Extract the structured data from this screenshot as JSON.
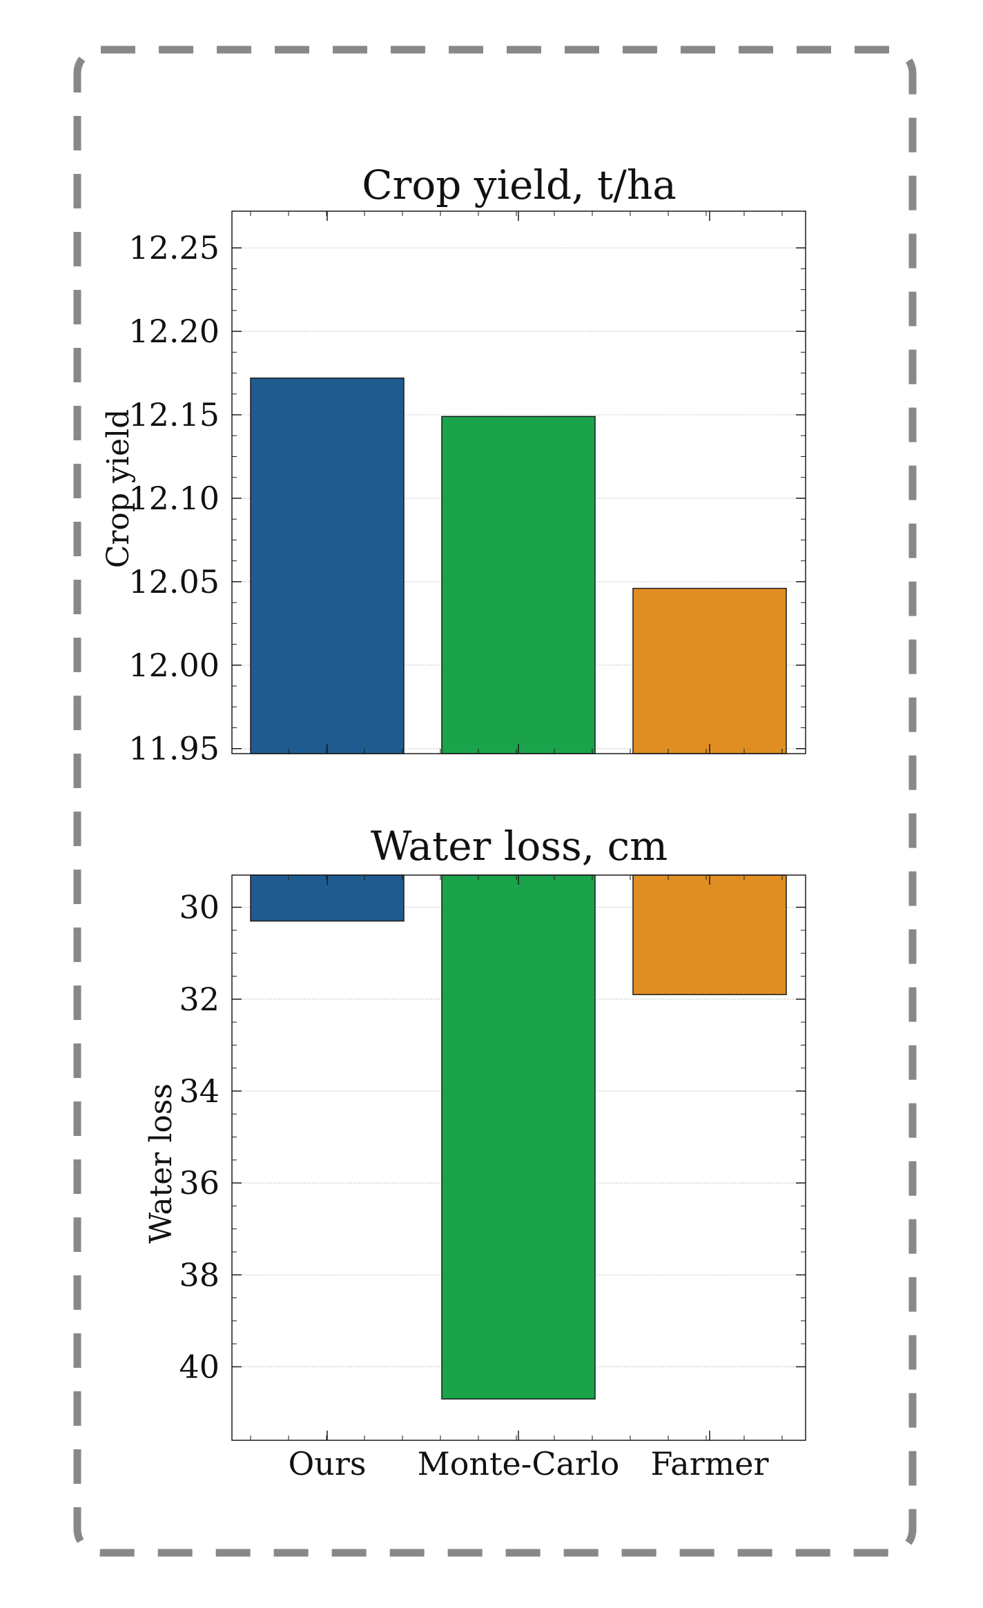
{
  "figure": {
    "frame_color": "#888888",
    "bar_edge_color": "#1a1a1a",
    "grid_color": "#c9c9c9"
  },
  "categories": [
    "Ours",
    "Monte-Carlo",
    "Farmer"
  ],
  "colors": [
    "#1f5b8f",
    "#1aa34a",
    "#e08e22"
  ],
  "chart_data": [
    {
      "type": "bar",
      "title": "Crop yield, t/ha",
      "xlabel": "",
      "ylabel": "Crop yield",
      "categories": [
        "Ours",
        "Monte-Carlo",
        "Farmer"
      ],
      "values": [
        12.172,
        12.149,
        12.046
      ],
      "ylim": [
        11.947,
        12.272
      ],
      "yticks": [
        11.95,
        12.0,
        12.05,
        12.1,
        12.15,
        12.2,
        12.25
      ],
      "ytick_labels": [
        "11.95",
        "12.00",
        "12.05",
        "12.10",
        "12.15",
        "12.20",
        "12.25"
      ],
      "y_inverted": false,
      "show_x_tick_labels": false,
      "grid": "horizontal",
      "legend": "none"
    },
    {
      "type": "bar",
      "title": "Water loss, cm",
      "xlabel": "",
      "ylabel": "Water loss",
      "categories": [
        "Ours",
        "Monte-Carlo",
        "Farmer"
      ],
      "values": [
        30.3,
        40.7,
        31.9
      ],
      "ylim": [
        29.3,
        41.6
      ],
      "yticks": [
        30,
        32,
        34,
        36,
        38,
        40
      ],
      "ytick_labels": [
        "30",
        "32",
        "34",
        "36",
        "38",
        "40"
      ],
      "y_inverted": true,
      "show_x_tick_labels": true,
      "grid": "horizontal",
      "legend": "none"
    }
  ]
}
